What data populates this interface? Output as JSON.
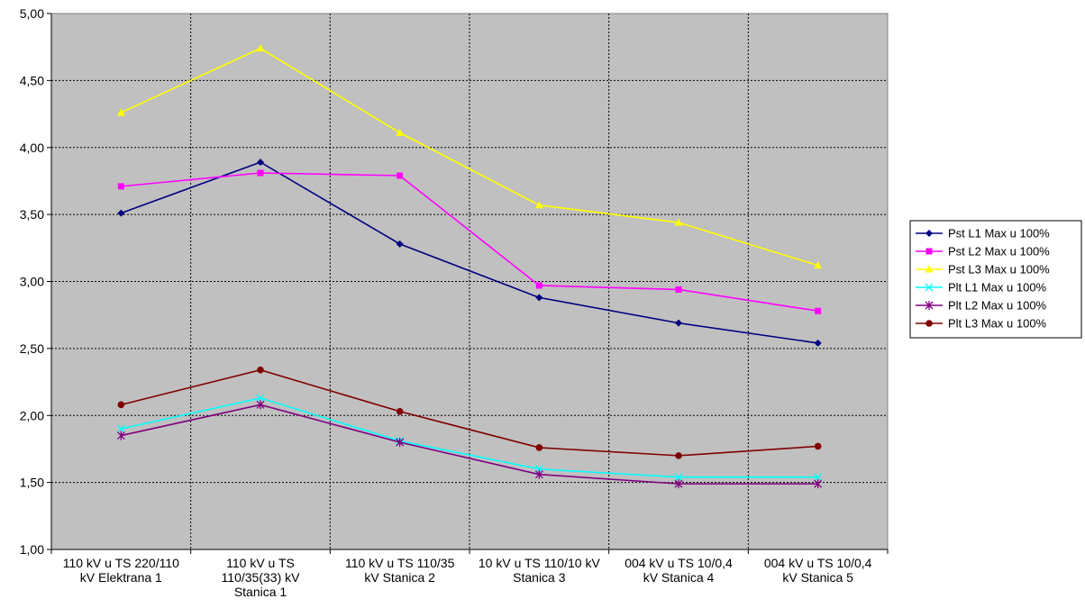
{
  "chart_data": {
    "type": "line",
    "categories": [
      [
        "110 kV u TS 220/110",
        "kV Elektrana 1"
      ],
      [
        "110 kV u TS",
        "110/35(33) kV",
        "Stanica 1"
      ],
      [
        "110 kV u TS 110/35",
        "kV Stanica 2"
      ],
      [
        "10 kV u TS 110/10 kV",
        "Stanica 3"
      ],
      [
        "004 kV u TS 10/0,4",
        "kV Stanica 4"
      ],
      [
        "004 kV u TS 10/0,4",
        "kV Stanica 5"
      ]
    ],
    "ylim": [
      1.0,
      5.0
    ],
    "yticks": [
      "1,00",
      "1,50",
      "2,00",
      "2,50",
      "3,00",
      "3,50",
      "4,00",
      "4,50",
      "5,00"
    ],
    "grid": true,
    "legend_position": "right",
    "plot_background": "#c0c0c0",
    "series": [
      {
        "name": "Pst L1 Max u 100%",
        "color": "#000080",
        "marker": "diamond",
        "values": [
          3.51,
          3.89,
          3.28,
          2.88,
          2.69,
          2.54
        ]
      },
      {
        "name": "Pst L2 Max u 100%",
        "color": "#ff00ff",
        "marker": "square",
        "values": [
          3.71,
          3.81,
          3.79,
          2.97,
          2.94,
          2.78
        ]
      },
      {
        "name": "Pst L3 Max u 100%",
        "color": "#ffff00",
        "marker": "triangle",
        "values": [
          4.26,
          4.74,
          4.11,
          3.57,
          3.44,
          3.12
        ]
      },
      {
        "name": "Plt L1 Max u 100%",
        "color": "#00ffff",
        "marker": "x",
        "values": [
          1.9,
          2.13,
          1.81,
          1.6,
          1.54,
          1.54
        ]
      },
      {
        "name": "Plt L2 Max u 100%",
        "color": "#800080",
        "marker": "star",
        "values": [
          1.85,
          2.08,
          1.8,
          1.56,
          1.49,
          1.49
        ]
      },
      {
        "name": "Plt L3 Max u 100%",
        "color": "#800000",
        "marker": "circle",
        "values": [
          2.08,
          2.34,
          2.03,
          1.76,
          1.7,
          1.77
        ]
      }
    ]
  }
}
